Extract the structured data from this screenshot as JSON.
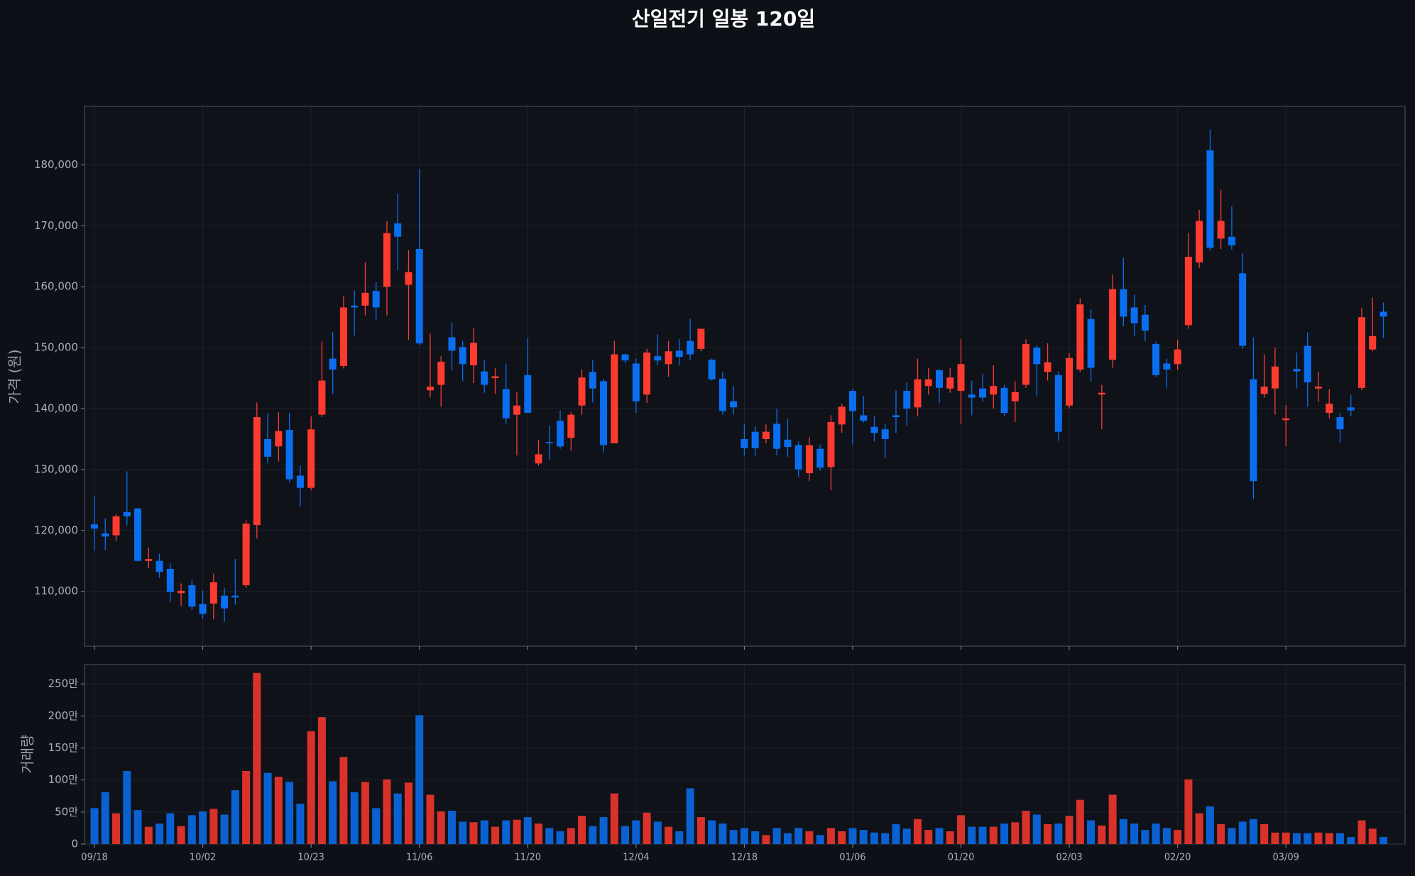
{
  "chart_data": [
    {
      "type": "candlestick",
      "title": "산일전기 일봉 120일",
      "y_label": "가격 (원)",
      "up_color": "#ff3b30",
      "down_color": "#0a6ef0",
      "grid": true,
      "ylim": [
        101000,
        189600
      ],
      "yticks": [
        {
          "value": 110000,
          "label": "110,000"
        },
        {
          "value": 120000,
          "label": "120,000"
        },
        {
          "value": 130000,
          "label": "130,000"
        },
        {
          "value": 140000,
          "label": "140,000"
        },
        {
          "value": 150000,
          "label": "150,000"
        },
        {
          "value": 160000,
          "label": "160,000"
        },
        {
          "value": 170000,
          "label": "170,000"
        },
        {
          "value": 180000,
          "label": "180,000"
        }
      ],
      "open": [
        121000,
        119500,
        119200,
        123000,
        123600,
        115000,
        115000,
        113700,
        109700,
        111000,
        107900,
        108000,
        109300,
        109300,
        111000,
        120900,
        135000,
        133800,
        136500,
        129000,
        127000,
        139000,
        148200,
        147000,
        156900,
        156900,
        159300,
        160000,
        170400,
        160300,
        166200,
        143000,
        143900,
        151700,
        150100,
        147100,
        146100,
        145000,
        143200,
        139000,
        145500,
        131000,
        134500,
        138000,
        135200,
        140500,
        146000,
        144500,
        134300,
        148900,
        147400,
        142300,
        148600,
        147300,
        149500,
        151100,
        149800,
        148000,
        144900,
        141200,
        135000,
        136200,
        135000,
        137500,
        134900,
        134000,
        129400,
        133400,
        130400,
        137400,
        142900,
        138900,
        137000,
        136600,
        138900,
        142900,
        140200,
        143700,
        146300,
        143300,
        142900,
        142300,
        143300,
        142300,
        143400,
        141200,
        143900,
        150000,
        146000,
        145500,
        140500,
        146400,
        154700,
        142300,
        148000,
        159600,
        156600,
        155400,
        150600,
        147400,
        147300,
        153700,
        164000,
        182400,
        167900,
        168200,
        162200,
        144800,
        142400,
        143300,
        138100,
        146500,
        150300,
        143300,
        139300,
        138600,
        140200,
        143400,
        149700,
        155900
      ],
      "high": [
        125600,
        122000,
        122700,
        129700,
        123700,
        117200,
        116200,
        114600,
        111300,
        111900,
        110100,
        112900,
        110600,
        115300,
        121700,
        141000,
        139300,
        139400,
        139300,
        130600,
        138700,
        151000,
        152600,
        158500,
        159400,
        164000,
        160800,
        170800,
        175300,
        166000,
        179300,
        152300,
        148600,
        154200,
        151100,
        153200,
        147900,
        146700,
        147400,
        142700,
        151600,
        134900,
        137200,
        139700,
        139400,
        146400,
        148000,
        144900,
        151100,
        149000,
        148200,
        149800,
        152200,
        151100,
        151400,
        154700,
        153100,
        148200,
        146000,
        143700,
        137500,
        137100,
        137400,
        140000,
        138300,
        134600,
        135300,
        134100,
        138900,
        140800,
        143200,
        142100,
        138700,
        137500,
        143000,
        144300,
        148200,
        146700,
        146400,
        146600,
        151400,
        144600,
        145700,
        147100,
        143900,
        144500,
        151400,
        150400,
        150700,
        146100,
        149100,
        158100,
        156300,
        143900,
        162000,
        164800,
        158700,
        157000,
        151000,
        148200,
        151300,
        168800,
        172600,
        185800,
        175900,
        173200,
        165500,
        151700,
        148900,
        150000,
        140600,
        149200,
        152500,
        146000,
        143200,
        139300,
        142300,
        156500,
        158200,
        157400
      ],
      "low": [
        116700,
        116800,
        118300,
        120800,
        114900,
        113800,
        112200,
        108200,
        107600,
        107000,
        105500,
        105400,
        105000,
        107800,
        110600,
        118700,
        131000,
        131300,
        127900,
        123900,
        126600,
        138600,
        142400,
        146600,
        152000,
        155300,
        154500,
        155300,
        162700,
        151300,
        150400,
        141800,
        140300,
        146300,
        144500,
        144200,
        142600,
        142400,
        137500,
        132300,
        139300,
        130600,
        131600,
        133400,
        133100,
        139000,
        141000,
        132800,
        134300,
        147400,
        139300,
        140900,
        147100,
        145200,
        147100,
        147900,
        149400,
        144600,
        139000,
        139000,
        132300,
        132200,
        134300,
        132300,
        132100,
        128800,
        128100,
        129800,
        126600,
        136000,
        134100,
        137700,
        134600,
        131800,
        136000,
        137200,
        138700,
        142300,
        140900,
        142600,
        137500,
        138900,
        141100,
        140000,
        138700,
        137800,
        143400,
        142000,
        144600,
        134700,
        140000,
        146000,
        144500,
        136600,
        146700,
        153500,
        151900,
        151000,
        145200,
        143300,
        146300,
        153100,
        163100,
        165900,
        166200,
        166100,
        149800,
        125100,
        141800,
        139000,
        133800,
        143300,
        140300,
        141100,
        138400,
        134400,
        138700,
        143000,
        149400,
        151600
      ],
      "close": [
        120300,
        119000,
        122300,
        122300,
        115000,
        115300,
        113200,
        109900,
        110100,
        107500,
        106300,
        111500,
        107200,
        109000,
        121100,
        138600,
        132100,
        136300,
        128400,
        127000,
        136600,
        144600,
        146400,
        156600,
        156600,
        159000,
        156600,
        168800,
        168200,
        162400,
        150700,
        143600,
        147700,
        149500,
        147300,
        150800,
        143900,
        145300,
        138400,
        140500,
        139300,
        132500,
        134300,
        133800,
        139000,
        145100,
        143300,
        134000,
        148900,
        147900,
        141200,
        149200,
        147900,
        149400,
        148500,
        148900,
        153100,
        144800,
        139600,
        140200,
        133500,
        133500,
        136200,
        133400,
        133700,
        130000,
        134000,
        130300,
        137800,
        140300,
        139600,
        138000,
        136000,
        135000,
        138600,
        140000,
        144800,
        144800,
        143400,
        145100,
        147300,
        141800,
        141800,
        143700,
        139300,
        142700,
        150600,
        147300,
        147600,
        136200,
        148300,
        157100,
        146700,
        142600,
        159600,
        155100,
        154000,
        152800,
        145500,
        146400,
        149700,
        164900,
        170800,
        166400,
        170800,
        166800,
        150300,
        128100,
        143600,
        146900,
        138400,
        146100,
        144300,
        143600,
        140800,
        136600,
        139700,
        155000,
        151900,
        155100
      ]
    },
    {
      "type": "bar",
      "y_label": "거래량",
      "grid": true,
      "up_color": "#d9322b",
      "down_color": "#0a62d2",
      "ylim": [
        0,
        280
      ],
      "yticks": [
        0,
        {
          "value": 50,
          "label": "50만"
        },
        {
          "value": 100,
          "label": "100만"
        },
        {
          "value": 150,
          "label": "150만"
        },
        {
          "value": 200,
          "label": "200만"
        },
        {
          "value": 250,
          "label": "250만"
        }
      ],
      "categories": [
        "09/18",
        null,
        null,
        null,
        null,
        null,
        null,
        null,
        null,
        null,
        "10/02",
        null,
        null,
        null,
        null,
        null,
        null,
        null,
        null,
        null,
        "10/23",
        null,
        null,
        null,
        null,
        null,
        null,
        null,
        null,
        null,
        "11/06",
        null,
        null,
        null,
        null,
        null,
        null,
        null,
        null,
        null,
        "11/20",
        null,
        null,
        null,
        null,
        null,
        null,
        null,
        null,
        null,
        "12/04",
        null,
        null,
        null,
        null,
        null,
        null,
        null,
        null,
        null,
        "12/18",
        null,
        null,
        null,
        null,
        null,
        null,
        null,
        null,
        null,
        "01/06",
        null,
        null,
        null,
        null,
        null,
        null,
        null,
        null,
        null,
        "01/20",
        null,
        null,
        null,
        null,
        null,
        null,
        null,
        null,
        null,
        "02/03",
        null,
        null,
        null,
        null,
        null,
        null,
        null,
        null,
        null,
        "02/20",
        null,
        null,
        null,
        null,
        null,
        null,
        null,
        null,
        null,
        "03/09",
        null,
        null,
        null,
        null,
        null,
        null,
        null,
        null,
        null
      ],
      "values": [
        56,
        81,
        48,
        114,
        53,
        27,
        32,
        48,
        28,
        45,
        51,
        55,
        46,
        84,
        114,
        267,
        111,
        105,
        97,
        63,
        176,
        198,
        98,
        136,
        81,
        97,
        56,
        101,
        79,
        96,
        201,
        77,
        51,
        52,
        35,
        34,
        37,
        27,
        37,
        38,
        42,
        32,
        25,
        20,
        25,
        44,
        28,
        42,
        79,
        28,
        37,
        49,
        35,
        27,
        20,
        87,
        42,
        37,
        32,
        22,
        25,
        20,
        14,
        25,
        17,
        25,
        20,
        14,
        25,
        20,
        25,
        22,
        18,
        17,
        31,
        24,
        39,
        22,
        25,
        20,
        45,
        27,
        27,
        27,
        32,
        34,
        52,
        46,
        31,
        32,
        44,
        69,
        37,
        29,
        77,
        39,
        32,
        22,
        32,
        25,
        22,
        101,
        48,
        59,
        31,
        25,
        35,
        39,
        31,
        18,
        18,
        17,
        17,
        18,
        17,
        17,
        11,
        37,
        24,
        11
      ]
    }
  ]
}
